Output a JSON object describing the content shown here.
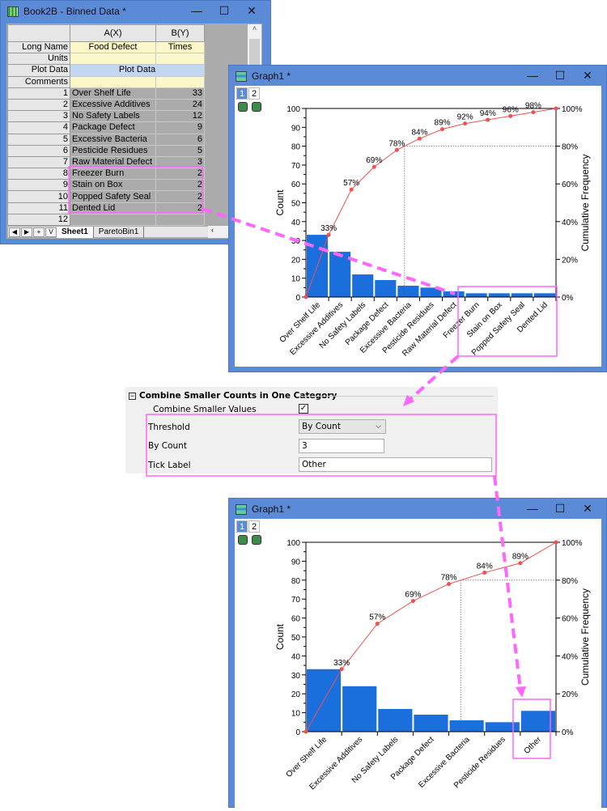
{
  "workbook": {
    "title": "Book2B - Binned Data *",
    "controls": [
      "—",
      "☐",
      "✕"
    ],
    "columns": [
      "A(X)",
      "B(Y)"
    ],
    "meta_rows": [
      {
        "label": "Long Name",
        "a": "Food Defect",
        "b": "Times"
      },
      {
        "label": "Units",
        "a": "",
        "b": ""
      },
      {
        "label": "Plot Data",
        "merged": "Plot Data"
      },
      {
        "label": "Comments",
        "a": "",
        "b": ""
      }
    ],
    "rows": [
      {
        "n": "1",
        "a": "Over Shelf Life",
        "b": "33"
      },
      {
        "n": "2",
        "a": "Excessive Additives",
        "b": "24"
      },
      {
        "n": "3",
        "a": "No Safety Labels",
        "b": "12"
      },
      {
        "n": "4",
        "a": "Package Defect",
        "b": "9"
      },
      {
        "n": "5",
        "a": "Excessive Bacteria",
        "b": "6"
      },
      {
        "n": "6",
        "a": "Pesticide Residues",
        "b": "5"
      },
      {
        "n": "7",
        "a": "Raw Material Defect",
        "b": "3"
      },
      {
        "n": "8",
        "a": "Freezer Burn",
        "b": "2"
      },
      {
        "n": "9",
        "a": "Stain on Box",
        "b": "2"
      },
      {
        "n": "10",
        "a": "Popped Safety Seal",
        "b": "2"
      },
      {
        "n": "11",
        "a": "Dented Lid",
        "b": "2"
      },
      {
        "n": "12",
        "a": "",
        "b": ""
      }
    ],
    "sheet_tabs": [
      "Sheet1",
      "ParetoBin1"
    ],
    "active_tab": "Sheet1"
  },
  "graph1": {
    "title": "Graph1 *",
    "layers": [
      "1",
      "2"
    ]
  },
  "graph2": {
    "title": "Graph1 *",
    "layers": [
      "1",
      "2"
    ]
  },
  "dialog": {
    "section_title": "Combine Smaller Counts in One Category",
    "combine_label": "Combine Smaller Values",
    "combine_checked": true,
    "threshold_label": "Threshold",
    "threshold_value": "By Count",
    "by_count_label": "By Count",
    "by_count_value": "3",
    "tick_label_label": "Tick Label",
    "tick_label_value": "Other"
  },
  "colors": {
    "bar": "#1a6fdc",
    "cumulative": "#f05050",
    "highlight": "#ff66ff",
    "window": "#5b8ad6"
  },
  "chart_data": [
    {
      "type": "bar",
      "categories": [
        "Over Shelf Life",
        "Excessive Additives",
        "No Safety Labels",
        "Package Defect",
        "Excessive Bacteria",
        "Pesticide Residues",
        "Raw Material Defect",
        "Freezer Burn",
        "Stain on Box",
        "Popped Safety Seal",
        "Dented Lid"
      ],
      "values": [
        33,
        24,
        12,
        9,
        6,
        5,
        3,
        2,
        2,
        2,
        2
      ],
      "cumulative_labels": [
        "33%",
        "57%",
        "69%",
        "78%",
        "84%",
        "89%",
        "92%",
        "94%",
        "96%",
        "98%",
        "100%"
      ],
      "cumulative": [
        33,
        57,
        69,
        78,
        84,
        89,
        92,
        94,
        96,
        98,
        100
      ],
      "ylabel": "Count",
      "y2label": "Cumulative Frequency",
      "ylim": [
        0,
        100
      ],
      "y2lim": [
        0,
        100
      ],
      "yticks": [
        "0",
        "10",
        "20",
        "30",
        "40",
        "50",
        "60",
        "70",
        "80",
        "90",
        "100"
      ],
      "y2ticks": [
        "0%",
        "20%",
        "40%",
        "60%",
        "80%",
        "100%"
      ],
      "reference_level": 80
    },
    {
      "type": "bar",
      "categories": [
        "Over Shelf Life",
        "Excessive Additives",
        "No Safety Labels",
        "Package Defect",
        "Excessive Bacteria",
        "Pesticide Residues",
        "Other"
      ],
      "values": [
        33,
        24,
        12,
        9,
        6,
        5,
        11
      ],
      "cumulative_labels": [
        "33%",
        "57%",
        "69%",
        "78%",
        "84%",
        "89%",
        "100%"
      ],
      "cumulative": [
        33,
        57,
        69,
        78,
        84,
        89,
        100
      ],
      "ylabel": "Count",
      "y2label": "Cumulative Frequency",
      "ylim": [
        0,
        100
      ],
      "y2lim": [
        0,
        100
      ],
      "yticks": [
        "0",
        "10",
        "20",
        "30",
        "40",
        "50",
        "60",
        "70",
        "80",
        "90",
        "100"
      ],
      "y2ticks": [
        "0%",
        "20%",
        "40%",
        "60%",
        "80%",
        "100%"
      ],
      "reference_level": 80
    }
  ]
}
